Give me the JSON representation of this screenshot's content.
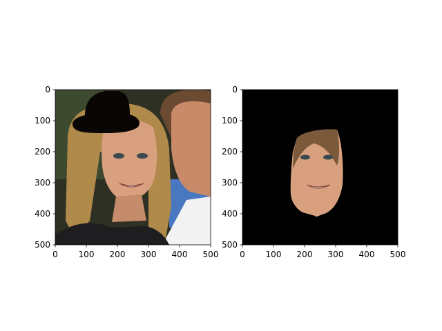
{
  "figure": {
    "background": "#ffffff",
    "axis_color": "#000000"
  },
  "chart_data": [
    {
      "type": "image",
      "description_kind": "photo-with-hat-overlay",
      "xlim": [
        0,
        500
      ],
      "ylim": [
        500,
        0
      ],
      "x_ticks": [
        0,
        100,
        200,
        300,
        400,
        500
      ],
      "y_ticks": [
        0,
        100,
        200,
        300,
        400,
        500
      ],
      "x_tick_labels": [
        "0",
        "100",
        "200",
        "300",
        "400",
        "500"
      ],
      "y_tick_labels": [
        "0",
        "100",
        "200",
        "300",
        "400",
        "500"
      ],
      "colors": {
        "background_dark": "#2e3024",
        "hair": "#b08a4a",
        "skin": "#d9a080",
        "shirt": "#f2f2f2",
        "jacket": "#1e1e20",
        "blue_bg": "#4a78c0",
        "hat": "#0a0606"
      }
    },
    {
      "type": "image",
      "description_kind": "face-cutout-on-black",
      "xlim": [
        0,
        500
      ],
      "ylim": [
        500,
        0
      ],
      "x_ticks": [
        0,
        100,
        200,
        300,
        400,
        500
      ],
      "y_ticks": [
        0,
        100,
        200,
        300,
        400,
        500
      ],
      "x_tick_labels": [
        "0",
        "100",
        "200",
        "300",
        "400",
        "500"
      ],
      "y_tick_labels": [
        "0",
        "100",
        "200",
        "300",
        "400",
        "500"
      ],
      "colors": {
        "background": "#000000",
        "skin": "#d9a080",
        "hair": "#7a5a3a"
      }
    }
  ]
}
